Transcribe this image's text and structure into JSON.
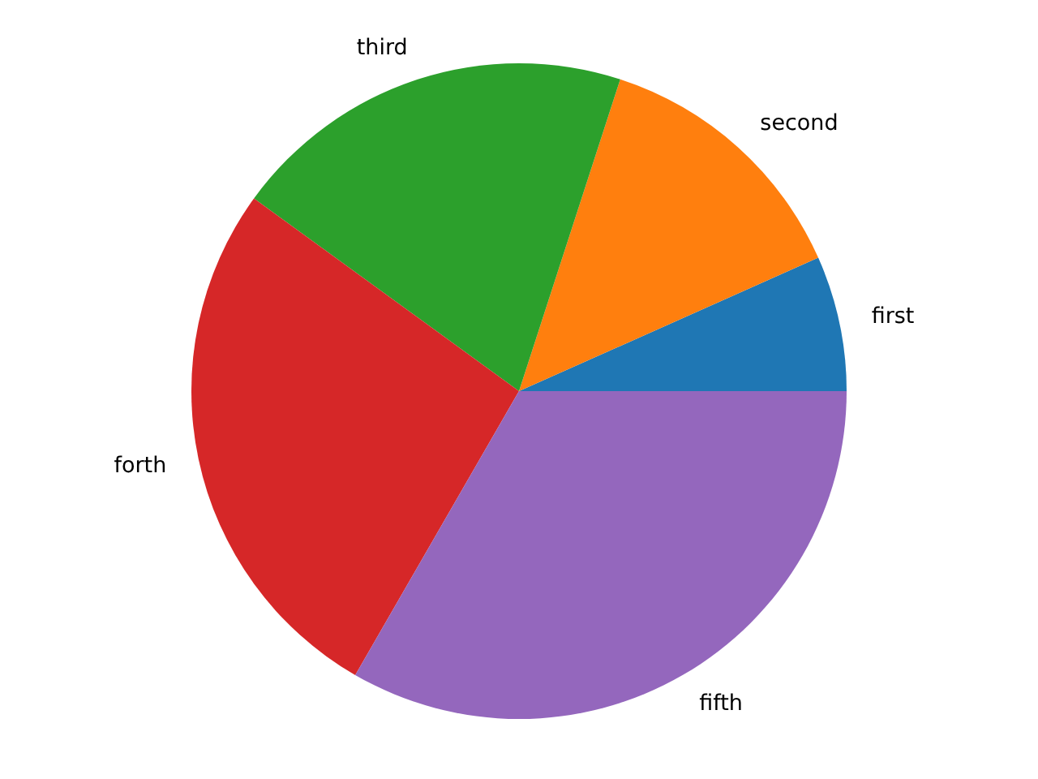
{
  "chart_data": {
    "type": "pie",
    "categories": [
      "first",
      "second",
      "third",
      "forth",
      "fifth"
    ],
    "values": [
      6.67,
      13.33,
      20,
      26.67,
      33.33
    ],
    "colors": [
      "#1f77b4",
      "#ff7f0e",
      "#2ca02c",
      "#d62728",
      "#9467bd"
    ]
  }
}
